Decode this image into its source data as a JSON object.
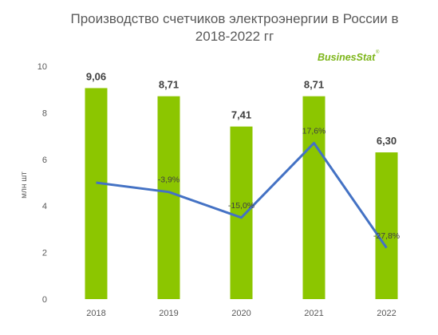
{
  "chart_data": {
    "type": "bar",
    "title": "Производство счетчиков электроэнергии в России в",
    "title_line2": "2018-2022 гг",
    "ylabel": "млн шт",
    "ylim": [
      0,
      10
    ],
    "yticks": [
      "0",
      "2",
      "4",
      "6",
      "8",
      "10"
    ],
    "grid": false,
    "categories": [
      "2018",
      "2019",
      "2020",
      "2021",
      "2022"
    ],
    "values": [
      9.06,
      8.71,
      7.41,
      8.71,
      6.3
    ],
    "value_labels": [
      "9,06",
      "8,71",
      "7,41",
      "8,71",
      "6,30"
    ],
    "bar_color": "#8cc600",
    "growth_series": {
      "values": [
        null,
        -3.9,
        -15.0,
        17.6,
        -27.8
      ],
      "labels": [
        "",
        "-3,9%",
        "-15,0%",
        "17,6%",
        "-27,8%"
      ],
      "line_y": [
        5.0,
        4.6,
        3.5,
        6.7,
        2.2
      ],
      "color": "#4472c4"
    }
  },
  "logo": {
    "text": "BusinesStat",
    "mark": "®"
  }
}
